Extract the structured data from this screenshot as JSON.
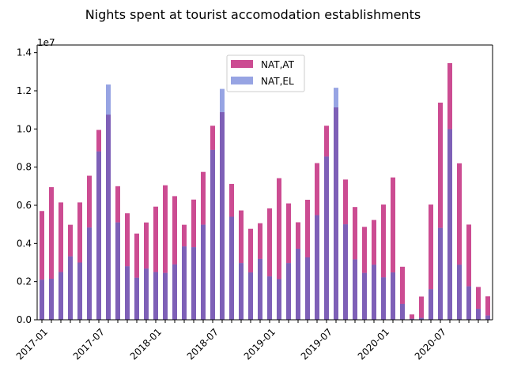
{
  "chart_data": {
    "type": "bar",
    "stacked": false,
    "overlay": true,
    "title": "Nights spent at tourist accomodation establishments",
    "xlabel": "",
    "ylabel": "",
    "y_offset_label": "1e7",
    "ylim": [
      0,
      14400000
    ],
    "yticks": [
      0,
      2000000,
      4000000,
      6000000,
      8000000,
      10000000,
      12000000,
      14000000
    ],
    "ytick_labels": [
      "0.0",
      "0.2",
      "0.4",
      "0.6",
      "0.8",
      "1.0",
      "1.2",
      "1.4"
    ],
    "xtick_labels": [
      {
        "index": 0,
        "label": "2017-01"
      },
      {
        "index": 6,
        "label": "2017-07"
      },
      {
        "index": 12,
        "label": "2018-01"
      },
      {
        "index": 18,
        "label": "2018-07"
      },
      {
        "index": 24,
        "label": "2019-01"
      },
      {
        "index": 30,
        "label": "2019-07"
      },
      {
        "index": 36,
        "label": "2020-01"
      },
      {
        "index": 42,
        "label": "2020-07"
      }
    ],
    "categories": [
      "2017-01",
      "2017-02",
      "2017-03",
      "2017-04",
      "2017-05",
      "2017-06",
      "2017-07",
      "2017-08",
      "2017-09",
      "2017-10",
      "2017-11",
      "2017-12",
      "2018-01",
      "2018-02",
      "2018-03",
      "2018-04",
      "2018-05",
      "2018-06",
      "2018-07",
      "2018-08",
      "2018-09",
      "2018-10",
      "2018-11",
      "2018-12",
      "2019-01",
      "2019-02",
      "2019-03",
      "2019-04",
      "2019-05",
      "2019-06",
      "2019-07",
      "2019-08",
      "2019-09",
      "2019-10",
      "2019-11",
      "2019-12",
      "2020-01",
      "2020-02",
      "2020-03",
      "2020-04",
      "2020-05",
      "2020-06",
      "2020-07",
      "2020-08",
      "2020-09",
      "2020-10",
      "2020-11",
      "2020-12"
    ],
    "series": [
      {
        "name": "NAT,AT",
        "color": "#cc4c92",
        "values": [
          5700000,
          6950000,
          6150000,
          4980000,
          6150000,
          7550000,
          9950000,
          10750000,
          7000000,
          5580000,
          4520000,
          5100000,
          5930000,
          7050000,
          6480000,
          4980000,
          6300000,
          7750000,
          10170000,
          10880000,
          7120000,
          5730000,
          4770000,
          5060000,
          5840000,
          7420000,
          6100000,
          5110000,
          6290000,
          8210000,
          10170000,
          11130000,
          7350000,
          5910000,
          4870000,
          5230000,
          6040000,
          7460000,
          2780000,
          280000,
          1220000,
          6040000,
          11380000,
          13450000,
          8200000,
          4990000,
          1720000,
          1230000
        ]
      },
      {
        "name": "NAT,EL",
        "color": "#97a4e3",
        "values": [
          2100000,
          2150000,
          2500000,
          3320000,
          3000000,
          4830000,
          8820000,
          12330000,
          5100000,
          2800000,
          2200000,
          2680000,
          2500000,
          2450000,
          2900000,
          3840000,
          3800000,
          4980000,
          8900000,
          12100000,
          5400000,
          2970000,
          2480000,
          3190000,
          2270000,
          2130000,
          2970000,
          3720000,
          3270000,
          5480000,
          8550000,
          12160000,
          5000000,
          3160000,
          2450000,
          2880000,
          2220000,
          2480000,
          830000,
          50000,
          100000,
          1600000,
          4810000,
          9990000,
          2880000,
          1750000,
          570000,
          220000
        ]
      }
    ],
    "overlap_color": "#7e60b7",
    "grid": false,
    "legend_position": "top-center"
  }
}
